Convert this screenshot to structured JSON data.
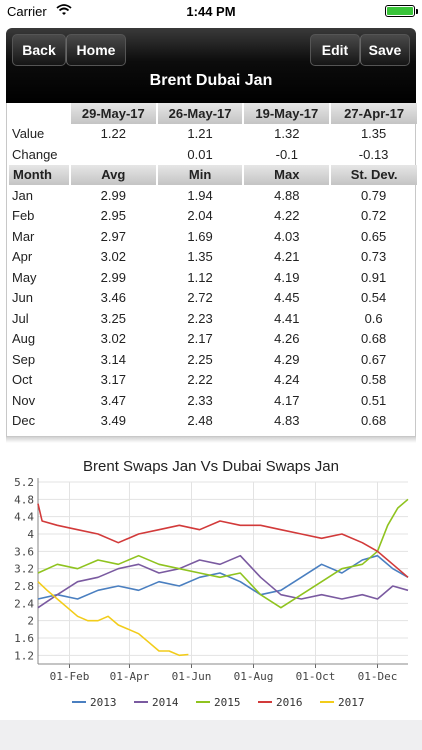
{
  "status": {
    "carrier": "Carrier",
    "time": "1:44 PM"
  },
  "nav": {
    "back": "Back",
    "home": "Home",
    "edit": "Edit",
    "save": "Save",
    "title": "Brent Dubai Jan"
  },
  "table": {
    "dates": [
      "29-May-17",
      "26-May-17",
      "19-May-17",
      "27-Apr-17"
    ],
    "value_label": "Value",
    "values": [
      "1.22",
      "1.21",
      "1.32",
      "1.35"
    ],
    "change_label": "Change",
    "changes": [
      "",
      "0.01",
      "-0.1",
      "-0.13"
    ],
    "stats_headers": [
      "Month",
      "Avg",
      "Min",
      "Max",
      "St. Dev."
    ],
    "rows": [
      [
        "Jan",
        "2.99",
        "1.94",
        "4.88",
        "0.79"
      ],
      [
        "Feb",
        "2.95",
        "2.04",
        "4.22",
        "0.72"
      ],
      [
        "Mar",
        "2.97",
        "1.69",
        "4.03",
        "0.65"
      ],
      [
        "Apr",
        "3.02",
        "1.35",
        "4.21",
        "0.73"
      ],
      [
        "May",
        "2.99",
        "1.12",
        "4.19",
        "0.91"
      ],
      [
        "Jun",
        "3.46",
        "2.72",
        "4.45",
        "0.54"
      ],
      [
        "Jul",
        "3.25",
        "2.23",
        "4.41",
        "0.6"
      ],
      [
        "Aug",
        "3.02",
        "2.17",
        "4.26",
        "0.68"
      ],
      [
        "Sep",
        "3.14",
        "2.25",
        "4.29",
        "0.67"
      ],
      [
        "Oct",
        "3.17",
        "2.22",
        "4.24",
        "0.58"
      ],
      [
        "Nov",
        "3.47",
        "2.33",
        "4.17",
        "0.51"
      ],
      [
        "Dec",
        "3.49",
        "2.48",
        "4.83",
        "0.68"
      ]
    ]
  },
  "chart_data": {
    "type": "line",
    "title": "Brent Swaps Jan Vs Dubai Swaps Jan",
    "y_ticks": [
      "1.2",
      "1.6",
      "2",
      "2.4",
      "2.8",
      "3.2",
      "3.6",
      "4",
      "4.4",
      "4.8",
      "5.2"
    ],
    "ylim": [
      1.0,
      5.2
    ],
    "x_ticks": [
      {
        "label": "01-Feb",
        "day": 32
      },
      {
        "label": "01-Apr",
        "day": 91
      },
      {
        "label": "01-Jun",
        "day": 152
      },
      {
        "label": "01-Aug",
        "day": 213
      },
      {
        "label": "01-Oct",
        "day": 274
      },
      {
        "label": "01-Dec",
        "day": 335
      }
    ],
    "xlim": [
      1,
      365
    ],
    "legend_position": "bottom",
    "series": [
      {
        "name": "2013",
        "color": "#4a7fc0",
        "x": [
          1,
          20,
          40,
          60,
          80,
          100,
          120,
          140,
          160,
          180,
          200,
          220,
          240,
          260,
          280,
          300,
          320,
          335,
          350,
          365
        ],
        "y": [
          2.5,
          2.6,
          2.5,
          2.7,
          2.8,
          2.7,
          2.9,
          2.8,
          3.0,
          3.1,
          2.9,
          2.6,
          2.7,
          3.0,
          3.3,
          3.1,
          3.4,
          3.5,
          3.2,
          3.0
        ]
      },
      {
        "name": "2014",
        "color": "#7a5aa0",
        "x": [
          1,
          20,
          40,
          60,
          80,
          100,
          120,
          140,
          160,
          180,
          200,
          220,
          240,
          260,
          280,
          300,
          320,
          335,
          350,
          365
        ],
        "y": [
          2.3,
          2.6,
          2.9,
          3.0,
          3.2,
          3.3,
          3.1,
          3.2,
          3.4,
          3.3,
          3.5,
          3.0,
          2.6,
          2.5,
          2.6,
          2.5,
          2.6,
          2.5,
          2.8,
          2.7
        ]
      },
      {
        "name": "2015",
        "color": "#8fc31f",
        "x": [
          1,
          20,
          40,
          60,
          80,
          100,
          120,
          140,
          160,
          180,
          200,
          220,
          240,
          260,
          280,
          300,
          320,
          335,
          345,
          355,
          365
        ],
        "y": [
          3.1,
          3.3,
          3.2,
          3.4,
          3.3,
          3.5,
          3.3,
          3.2,
          3.1,
          3.0,
          3.1,
          2.6,
          2.3,
          2.6,
          2.9,
          3.2,
          3.3,
          3.6,
          4.2,
          4.6,
          4.8
        ]
      },
      {
        "name": "2016",
        "color": "#d23a3a",
        "x": [
          1,
          5,
          20,
          40,
          60,
          80,
          100,
          120,
          140,
          160,
          180,
          200,
          220,
          240,
          260,
          280,
          300,
          320,
          335,
          350,
          365
        ],
        "y": [
          4.7,
          4.3,
          4.2,
          4.1,
          4.0,
          3.8,
          4.0,
          4.1,
          4.2,
          4.1,
          4.3,
          4.2,
          4.2,
          4.1,
          4.0,
          3.9,
          4.0,
          3.8,
          3.6,
          3.3,
          3.0
        ]
      },
      {
        "name": "2017",
        "color": "#f2cc1a",
        "x": [
          1,
          10,
          20,
          30,
          40,
          50,
          60,
          70,
          80,
          90,
          100,
          110,
          120,
          130,
          140,
          149
        ],
        "y": [
          2.9,
          2.7,
          2.5,
          2.3,
          2.1,
          2.0,
          2.0,
          2.1,
          1.9,
          1.8,
          1.7,
          1.5,
          1.3,
          1.3,
          1.2,
          1.22
        ]
      }
    ]
  }
}
